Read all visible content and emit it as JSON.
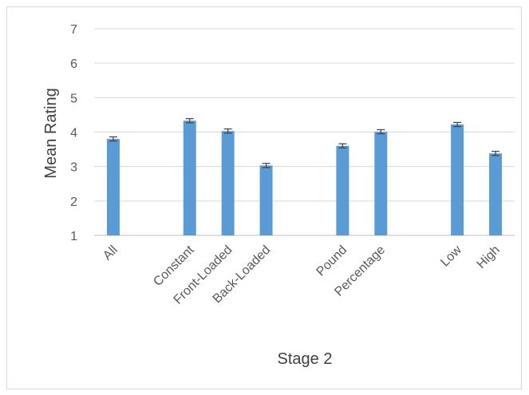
{
  "chart_data": {
    "type": "bar",
    "xlabel": "Stage 2",
    "ylabel": "Mean Rating",
    "ylim": [
      1,
      7
    ],
    "yticks": [
      1,
      2,
      3,
      4,
      5,
      6,
      7
    ],
    "grid": true,
    "categories": [
      "All",
      "",
      "Constant",
      "Front-Loaded",
      "Back-Loaded",
      "",
      "Pound",
      "Percentage",
      "",
      "Low",
      "High"
    ],
    "values": [
      3.8,
      null,
      4.33,
      4.03,
      3.03,
      null,
      3.6,
      4.01,
      null,
      4.22,
      3.38
    ],
    "error": [
      0.06,
      null,
      0.06,
      0.06,
      0.06,
      null,
      0.06,
      0.06,
      null,
      0.06,
      0.06
    ],
    "bar_color": "#5b9bd5",
    "error_color": "#404040"
  }
}
